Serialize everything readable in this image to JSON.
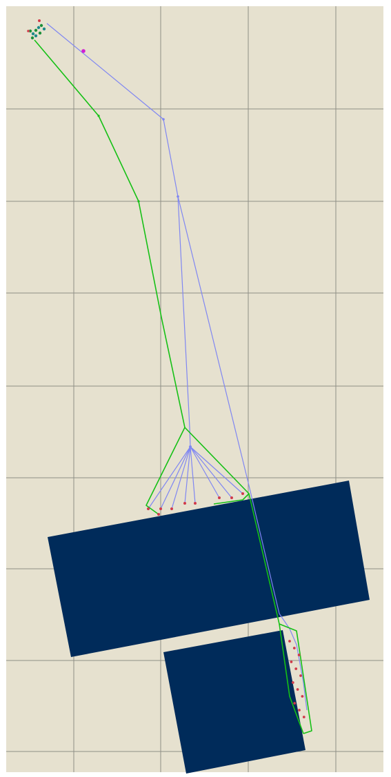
{
  "colors": {
    "background": "#e6e1cf",
    "grid": "#8e8e86",
    "block_fill": "#002b5a",
    "green_path": "#15c015",
    "blue_path": "#7f86f2",
    "node_red": "#d13a4a",
    "node_magenta": "#d21ed2",
    "node_green": "#1c8f3a",
    "node_teal": "#1d8a8a"
  },
  "grid": {
    "visible": true,
    "spacing": "regular"
  },
  "blocks": [
    {
      "name": "block-large",
      "color": "#002b5a"
    },
    {
      "name": "block-small",
      "color": "#002b5a"
    }
  ],
  "paths": [
    {
      "name": "green-route",
      "color": "#15c015"
    },
    {
      "name": "blue-route",
      "color": "#7f86f2"
    }
  ]
}
